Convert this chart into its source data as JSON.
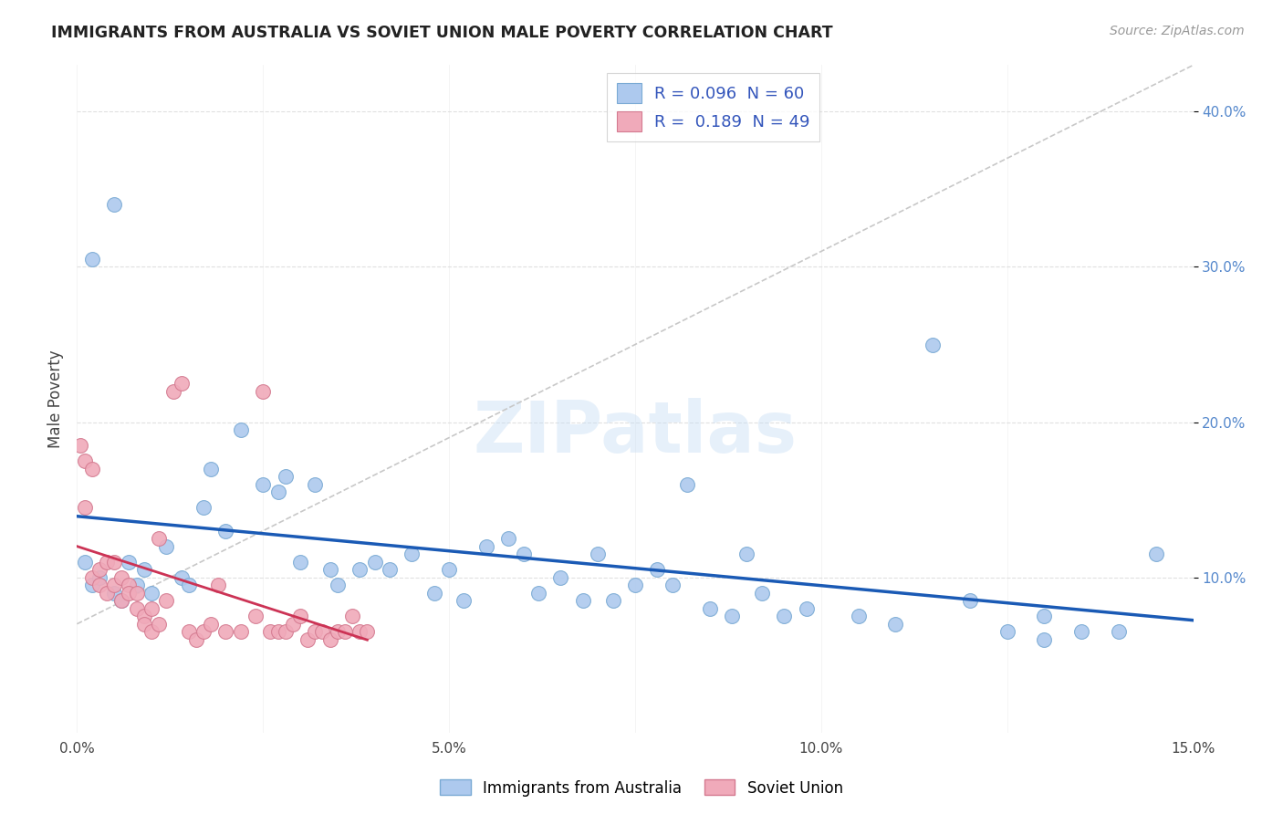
{
  "title": "IMMIGRANTS FROM AUSTRALIA VS SOVIET UNION MALE POVERTY CORRELATION CHART",
  "source": "Source: ZipAtlas.com",
  "ylabel": "Male Poverty",
  "xlim": [
    0.0,
    0.15
  ],
  "ylim": [
    0.0,
    0.43
  ],
  "xtick_positions": [
    0.0,
    0.025,
    0.05,
    0.075,
    0.1,
    0.125,
    0.15
  ],
  "xtick_labels": [
    "0.0%",
    "",
    "5.0%",
    "",
    "10.0%",
    "",
    "15.0%"
  ],
  "ytick_positions": [
    0.1,
    0.2,
    0.3,
    0.4
  ],
  "ytick_labels": [
    "10.0%",
    "20.0%",
    "30.0%",
    "40.0%"
  ],
  "australia_color": "#adc9ee",
  "australia_edge": "#7aaad4",
  "soviet_color": "#f0aaba",
  "soviet_edge": "#d47a90",
  "australia_line_color": "#1a5ab5",
  "soviet_line_color": "#cc3355",
  "diag_line_color": "#c8c8c8",
  "watermark": "ZIPatlas",
  "legend_R_color": "#3355bb",
  "aus_legend_label": "R = 0.096  N = 60",
  "sov_legend_label": "R =  0.189  N = 49",
  "bottom_legend_aus": "Immigrants from Australia",
  "bottom_legend_sov": "Soviet Union",
  "australia_x": [
    0.001,
    0.002,
    0.003,
    0.005,
    0.006,
    0.007,
    0.008,
    0.009,
    0.01,
    0.012,
    0.014,
    0.015,
    0.017,
    0.018,
    0.02,
    0.022,
    0.025,
    0.027,
    0.028,
    0.03,
    0.032,
    0.034,
    0.035,
    0.038,
    0.04,
    0.042,
    0.045,
    0.048,
    0.05,
    0.052,
    0.055,
    0.058,
    0.06,
    0.062,
    0.065,
    0.068,
    0.07,
    0.072,
    0.075,
    0.078,
    0.08,
    0.082,
    0.085,
    0.088,
    0.09,
    0.092,
    0.095,
    0.098,
    0.105,
    0.11,
    0.115,
    0.12,
    0.125,
    0.13,
    0.135,
    0.14,
    0.145,
    0.13,
    0.002,
    0.005
  ],
  "australia_y": [
    0.11,
    0.095,
    0.1,
    0.09,
    0.085,
    0.11,
    0.095,
    0.105,
    0.09,
    0.12,
    0.1,
    0.095,
    0.145,
    0.17,
    0.13,
    0.195,
    0.16,
    0.155,
    0.165,
    0.11,
    0.16,
    0.105,
    0.095,
    0.105,
    0.11,
    0.105,
    0.115,
    0.09,
    0.105,
    0.085,
    0.12,
    0.125,
    0.115,
    0.09,
    0.1,
    0.085,
    0.115,
    0.085,
    0.095,
    0.105,
    0.095,
    0.16,
    0.08,
    0.075,
    0.115,
    0.09,
    0.075,
    0.08,
    0.075,
    0.07,
    0.25,
    0.085,
    0.065,
    0.075,
    0.065,
    0.065,
    0.115,
    0.06,
    0.305,
    0.34
  ],
  "soviet_x": [
    0.0005,
    0.001,
    0.001,
    0.002,
    0.002,
    0.003,
    0.003,
    0.004,
    0.004,
    0.005,
    0.005,
    0.006,
    0.006,
    0.007,
    0.007,
    0.008,
    0.008,
    0.009,
    0.009,
    0.01,
    0.01,
    0.011,
    0.011,
    0.012,
    0.013,
    0.014,
    0.015,
    0.016,
    0.017,
    0.018,
    0.019,
    0.02,
    0.022,
    0.024,
    0.025,
    0.026,
    0.027,
    0.028,
    0.029,
    0.03,
    0.031,
    0.032,
    0.033,
    0.034,
    0.035,
    0.036,
    0.037,
    0.038,
    0.039
  ],
  "soviet_y": [
    0.185,
    0.175,
    0.145,
    0.17,
    0.1,
    0.095,
    0.105,
    0.11,
    0.09,
    0.11,
    0.095,
    0.1,
    0.085,
    0.095,
    0.09,
    0.08,
    0.09,
    0.075,
    0.07,
    0.08,
    0.065,
    0.07,
    0.125,
    0.085,
    0.22,
    0.225,
    0.065,
    0.06,
    0.065,
    0.07,
    0.095,
    0.065,
    0.065,
    0.075,
    0.22,
    0.065,
    0.065,
    0.065,
    0.07,
    0.075,
    0.06,
    0.065,
    0.065,
    0.06,
    0.065,
    0.065,
    0.075,
    0.065,
    0.065
  ]
}
